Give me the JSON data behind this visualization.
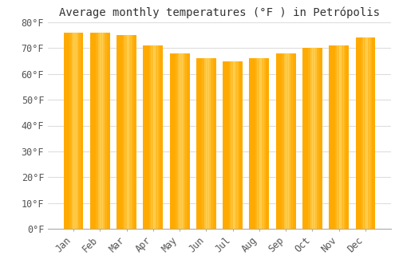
{
  "title": "Average monthly temperatures (°F ) in Petrópolis",
  "months": [
    "Jan",
    "Feb",
    "Mar",
    "Apr",
    "May",
    "Jun",
    "Jul",
    "Aug",
    "Sep",
    "Oct",
    "Nov",
    "Dec"
  ],
  "values": [
    76,
    76,
    75,
    71,
    68,
    66,
    65,
    66,
    68,
    70,
    71,
    74
  ],
  "bar_color_main": "#FFAA00",
  "bar_color_light": "#FFD966",
  "background_color": "#FFFFFF",
  "grid_color": "#DDDDDD",
  "ylim": [
    0,
    80
  ],
  "yticks": [
    0,
    10,
    20,
    30,
    40,
    50,
    60,
    70,
    80
  ],
  "ylabel_suffix": "°F",
  "title_fontsize": 10,
  "tick_fontsize": 8.5
}
